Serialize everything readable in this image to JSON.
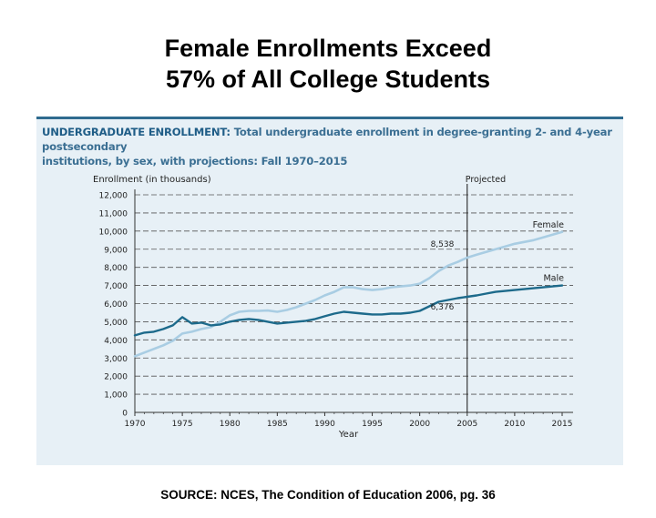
{
  "slide": {
    "title_line1": "Female Enrollments Exceed",
    "title_line2": "57% of All College Students",
    "source": "SOURCE: NCES, The Condition of Education 2006, pg. 36"
  },
  "chart_heading": {
    "label": "UNDERGRADUATE ENROLLMENT:",
    "line1_desc": "Total undergraduate enrollment in degree-granting 2- and 4-year postsecondary",
    "line2": "institutions, by sex, with projections: Fall 1970–2015"
  },
  "colors": {
    "female": "#a9cde3",
    "male": "#1d6a8b",
    "axis": "#333333",
    "grid": "#555555",
    "panel": "#e7f0f6",
    "heading": "#1f5d87"
  },
  "chart_data": {
    "type": "line",
    "title": "UNDERGRADUATE ENROLLMENT: Total undergraduate enrollment in degree-granting 2- and 4-year postsecondary institutions, by sex, with projections: Fall 1970–2015",
    "ylabel": "Enrollment (in thousands)",
    "xlabel": "Year",
    "xlim": [
      1970,
      2015
    ],
    "ylim": [
      0,
      12000
    ],
    "yticks": [
      0,
      1000,
      2000,
      3000,
      4000,
      5000,
      6000,
      7000,
      8000,
      9000,
      10000,
      11000,
      12000
    ],
    "ytick_labels": [
      "0",
      "1,000",
      "2,000",
      "3,000",
      "4,000",
      "5,000",
      "6,000",
      "7,000",
      "8,000",
      "9,000",
      "10,000",
      "11,000",
      "12,000"
    ],
    "xticks": [
      1970,
      1975,
      1980,
      1985,
      1990,
      1995,
      2000,
      2005,
      2010,
      2015
    ],
    "xtick_labels": [
      "1970",
      "1975",
      "1980",
      "1985",
      "1990",
      "1995",
      "2000",
      "2005",
      "2010",
      "2015"
    ],
    "grid": true,
    "projected_from": 2005,
    "projected_label": "Projected",
    "annotations": [
      {
        "text": "8,538",
        "x": 2004,
        "y": 8538
      },
      {
        "text": "6,376",
        "x": 2004,
        "y": 6376
      }
    ],
    "series": [
      {
        "name": "Female",
        "x": [
          1970,
          1971,
          1972,
          1973,
          1974,
          1975,
          1976,
          1977,
          1978,
          1979,
          1980,
          1981,
          1982,
          1983,
          1984,
          1985,
          1986,
          1987,
          1988,
          1989,
          1990,
          1991,
          1992,
          1993,
          1994,
          1995,
          1996,
          1997,
          1998,
          1999,
          2000,
          2001,
          2002,
          2003,
          2004,
          2005,
          2006,
          2007,
          2008,
          2009,
          2010,
          2011,
          2012,
          2013,
          2014,
          2015
        ],
        "values": [
          3100,
          3300,
          3500,
          3700,
          3950,
          4350,
          4450,
          4600,
          4700,
          5000,
          5350,
          5550,
          5600,
          5600,
          5620,
          5550,
          5650,
          5800,
          6000,
          6200,
          6450,
          6650,
          6900,
          6900,
          6800,
          6750,
          6800,
          6900,
          6950,
          7000,
          7100,
          7400,
          7800,
          8100,
          8300,
          8538,
          8700,
          8850,
          9000,
          9150,
          9300,
          9400,
          9500,
          9650,
          9800,
          9950
        ]
      },
      {
        "name": "Male",
        "x": [
          1970,
          1971,
          1972,
          1973,
          1974,
          1975,
          1976,
          1977,
          1978,
          1979,
          1980,
          1981,
          1982,
          1983,
          1984,
          1985,
          1986,
          1987,
          1988,
          1989,
          1990,
          1991,
          1992,
          1993,
          1994,
          1995,
          1996,
          1997,
          1998,
          1999,
          2000,
          2001,
          2002,
          2003,
          2004,
          2005,
          2006,
          2007,
          2008,
          2009,
          2010,
          2011,
          2012,
          2013,
          2014,
          2015
        ],
        "values": [
          4250,
          4400,
          4450,
          4600,
          4800,
          5250,
          4900,
          4950,
          4800,
          4850,
          5000,
          5100,
          5150,
          5100,
          5000,
          4900,
          4950,
          5000,
          5050,
          5150,
          5300,
          5450,
          5550,
          5500,
          5450,
          5400,
          5400,
          5450,
          5450,
          5500,
          5600,
          5850,
          6100,
          6200,
          6300,
          6376,
          6450,
          6550,
          6650,
          6700,
          6750,
          6800,
          6850,
          6900,
          6950,
          7000
        ]
      }
    ]
  }
}
